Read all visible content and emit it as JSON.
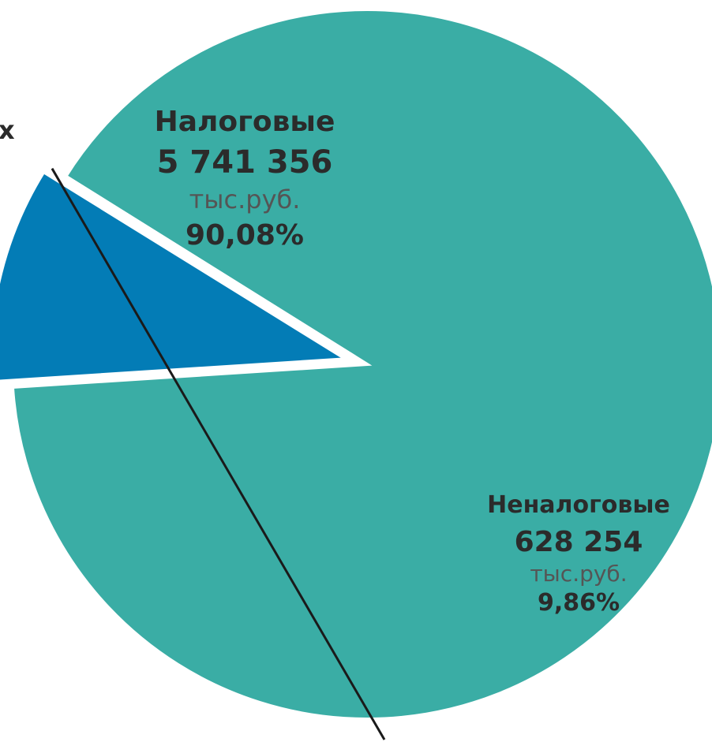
{
  "chart_data": {
    "type": "pie",
    "slices": [
      {
        "name": "Налоговые",
        "value": 5741356,
        "value_label": "5 741 356",
        "unit": "тыс.руб.",
        "percent": 90.08,
        "percent_label": "90,08%",
        "color": "#3aada5"
      },
      {
        "name": "Неналоговые",
        "value": 628254,
        "value_label": "628 254",
        "unit": "тыс.руб.",
        "percent": 9.86,
        "percent_label": "9,86%",
        "color": "#037cb6"
      },
      {
        "name": "",
        "value": 3800,
        "value_label": "",
        "unit": "",
        "percent": 0.06,
        "percent_label": "",
        "color": "#1a1a1a"
      }
    ],
    "title": "",
    "legend": "none"
  },
  "cut_text": "х"
}
